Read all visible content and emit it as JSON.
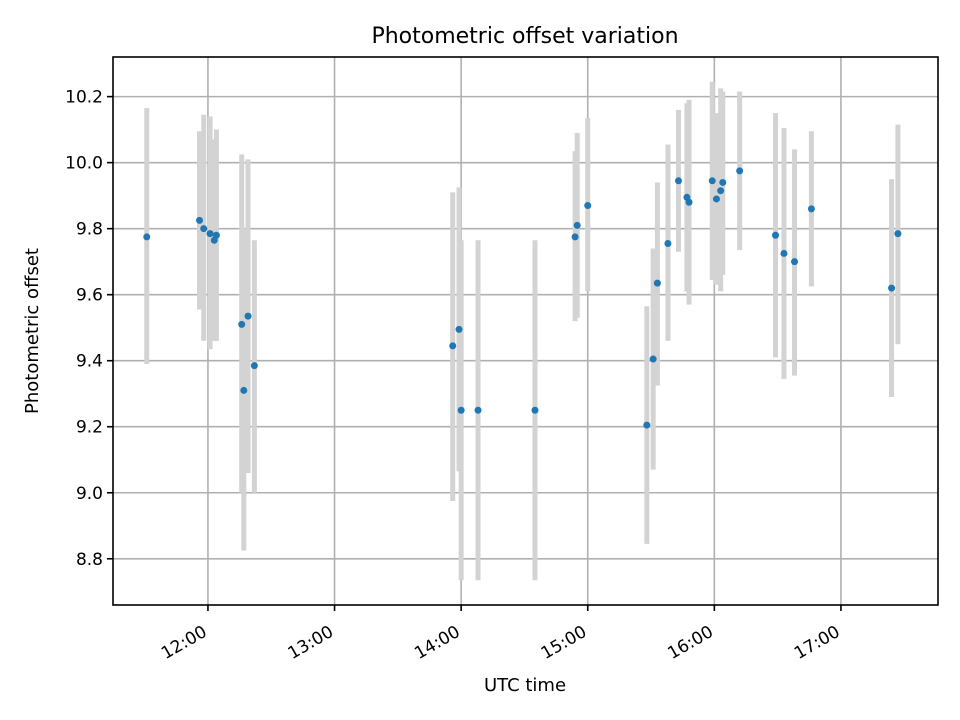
{
  "chart_data": {
    "type": "scatter",
    "title": "Photometric offset variation",
    "xlabel": "UTC time",
    "ylabel": "Photometric offset",
    "x_axis_type": "time",
    "xlim": [
      "11:15",
      "17:46"
    ],
    "ylim": [
      8.66,
      10.32
    ],
    "x_ticks": [
      "12:00",
      "13:00",
      "14:00",
      "15:00",
      "16:00",
      "17:00"
    ],
    "y_ticks": [
      8.8,
      9.0,
      9.2,
      9.4,
      9.6,
      9.8,
      10.0,
      10.2
    ],
    "grid": true,
    "legend": "none",
    "point_color": "#1f77b4",
    "errorbar_color": "#d3d3d3",
    "points": [
      {
        "x": "11:31",
        "y": 9.775,
        "ylow": 9.39,
        "yhigh": 10.165
      },
      {
        "x": "11:56",
        "y": 9.825,
        "ylow": 9.555,
        "yhigh": 10.095
      },
      {
        "x": "11:58",
        "y": 9.8,
        "ylow": 9.46,
        "yhigh": 10.145
      },
      {
        "x": "12:01",
        "y": 9.785,
        "ylow": 9.435,
        "yhigh": 10.14
      },
      {
        "x": "12:04",
        "y": 9.78,
        "ylow": 9.46,
        "yhigh": 10.1
      },
      {
        "x": "12:03",
        "y": 9.765,
        "ylow": 9.46,
        "yhigh": 10.07
      },
      {
        "x": "12:16",
        "y": 9.51,
        "ylow": 9.0,
        "yhigh": 10.025
      },
      {
        "x": "12:17",
        "y": 9.31,
        "ylow": 8.825,
        "yhigh": 9.8
      },
      {
        "x": "12:19",
        "y": 9.535,
        "ylow": 9.06,
        "yhigh": 10.01
      },
      {
        "x": "12:22",
        "y": 9.385,
        "ylow": 9.0,
        "yhigh": 9.765
      },
      {
        "x": "13:56",
        "y": 9.445,
        "ylow": 8.975,
        "yhigh": 9.91
      },
      {
        "x": "13:59",
        "y": 9.495,
        "ylow": 9.065,
        "yhigh": 9.925
      },
      {
        "x": "14:00",
        "y": 9.25,
        "ylow": 8.735,
        "yhigh": 9.765
      },
      {
        "x": "14:08",
        "y": 9.25,
        "ylow": 8.735,
        "yhigh": 9.765
      },
      {
        "x": "14:35",
        "y": 9.25,
        "ylow": 8.735,
        "yhigh": 9.765
      },
      {
        "x": "14:54",
        "y": 9.775,
        "ylow": 9.52,
        "yhigh": 10.035
      },
      {
        "x": "14:55",
        "y": 9.81,
        "ylow": 9.53,
        "yhigh": 10.09
      },
      {
        "x": "15:00",
        "y": 9.87,
        "ylow": 9.61,
        "yhigh": 10.135
      },
      {
        "x": "15:28",
        "y": 9.205,
        "ylow": 8.845,
        "yhigh": 9.565
      },
      {
        "x": "15:31",
        "y": 9.405,
        "ylow": 9.07,
        "yhigh": 9.74
      },
      {
        "x": "15:33",
        "y": 9.635,
        "ylow": 9.325,
        "yhigh": 9.94
      },
      {
        "x": "15:38",
        "y": 9.755,
        "ylow": 9.46,
        "yhigh": 10.055
      },
      {
        "x": "15:43",
        "y": 9.945,
        "ylow": 9.73,
        "yhigh": 10.16
      },
      {
        "x": "15:47",
        "y": 9.895,
        "ylow": 9.61,
        "yhigh": 10.18
      },
      {
        "x": "15:48",
        "y": 9.88,
        "ylow": 9.57,
        "yhigh": 10.19
      },
      {
        "x": "15:59",
        "y": 9.945,
        "ylow": 9.645,
        "yhigh": 10.245
      },
      {
        "x": "16:01",
        "y": 9.89,
        "ylow": 9.63,
        "yhigh": 10.15
      },
      {
        "x": "16:03",
        "y": 9.915,
        "ylow": 9.61,
        "yhigh": 10.225
      },
      {
        "x": "16:04",
        "y": 9.94,
        "ylow": 9.66,
        "yhigh": 10.215
      },
      {
        "x": "16:12",
        "y": 9.975,
        "ylow": 9.735,
        "yhigh": 10.215
      },
      {
        "x": "16:29",
        "y": 9.78,
        "ylow": 9.41,
        "yhigh": 10.15
      },
      {
        "x": "16:33",
        "y": 9.725,
        "ylow": 9.345,
        "yhigh": 10.105
      },
      {
        "x": "16:38",
        "y": 9.7,
        "ylow": 9.355,
        "yhigh": 10.04
      },
      {
        "x": "16:46",
        "y": 9.86,
        "ylow": 9.625,
        "yhigh": 10.095
      },
      {
        "x": "17:24",
        "y": 9.62,
        "ylow": 9.29,
        "yhigh": 9.95
      },
      {
        "x": "17:27",
        "y": 9.785,
        "ylow": 9.45,
        "yhigh": 10.115
      }
    ]
  }
}
